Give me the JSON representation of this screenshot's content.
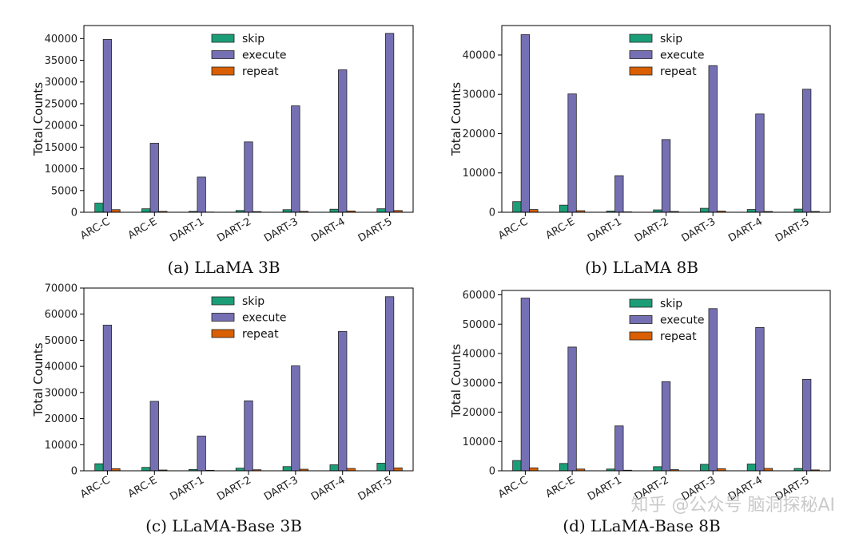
{
  "colors": {
    "skip": "#1b9e77",
    "execute": "#7570b3",
    "repeat": "#d95f02"
  },
  "legend": [
    "skip",
    "execute",
    "repeat"
  ],
  "watermark": "知乎 @公众号 脑洞探秘AI",
  "chart_data": [
    {
      "type": "bar",
      "caption": "(a) LLaMA 3B",
      "ylabel": "Total Counts",
      "ylim": [
        0,
        43000
      ],
      "yticks": [
        0,
        5000,
        10000,
        15000,
        20000,
        25000,
        30000,
        35000,
        40000
      ],
      "categories": [
        "ARC-C",
        "ARC-E",
        "DART-1",
        "DART-2",
        "DART-3",
        "DART-4",
        "DART-5"
      ],
      "series": [
        {
          "name": "skip",
          "values": [
            2100,
            800,
            200,
            400,
            600,
            700,
            800
          ]
        },
        {
          "name": "execute",
          "values": [
            39800,
            15900,
            8100,
            16200,
            24500,
            32800,
            41200
          ]
        },
        {
          "name": "repeat",
          "values": [
            600,
            200,
            50,
            150,
            200,
            300,
            400
          ]
        }
      ]
    },
    {
      "type": "bar",
      "caption": "(b) LLaMA 8B",
      "ylabel": "Total Counts",
      "ylim": [
        0,
        47500
      ],
      "yticks": [
        0,
        10000,
        20000,
        30000,
        40000
      ],
      "categories": [
        "ARC-C",
        "ARC-E",
        "DART-1",
        "DART-2",
        "DART-3",
        "DART-4",
        "DART-5"
      ],
      "series": [
        {
          "name": "skip",
          "values": [
            2700,
            1800,
            300,
            600,
            1000,
            700,
            800
          ]
        },
        {
          "name": "execute",
          "values": [
            45200,
            30100,
            9300,
            18500,
            37300,
            25000,
            31300
          ]
        },
        {
          "name": "repeat",
          "values": [
            700,
            400,
            100,
            200,
            300,
            200,
            200
          ]
        }
      ]
    },
    {
      "type": "bar",
      "caption": "(c) LLaMA-Base 3B",
      "ylabel": "Total Counts",
      "ylim": [
        0,
        70000
      ],
      "yticks": [
        0,
        10000,
        20000,
        30000,
        40000,
        50000,
        60000,
        70000
      ],
      "categories": [
        "ARC-C",
        "ARC-E",
        "DART-1",
        "DART-2",
        "DART-3",
        "DART-4",
        "DART-5"
      ],
      "series": [
        {
          "name": "skip",
          "values": [
            2700,
            1300,
            500,
            1000,
            1600,
            2300,
            2900
          ]
        },
        {
          "name": "execute",
          "values": [
            55800,
            26600,
            13300,
            26800,
            40200,
            53400,
            66700
          ]
        },
        {
          "name": "repeat",
          "values": [
            800,
            300,
            200,
            400,
            600,
            900,
            1100
          ]
        }
      ]
    },
    {
      "type": "bar",
      "caption": "(d) LLaMA-Base 8B",
      "ylabel": "Total Counts",
      "ylim": [
        0,
        61500
      ],
      "yticks": [
        0,
        10000,
        20000,
        30000,
        40000,
        50000,
        60000
      ],
      "categories": [
        "ARC-C",
        "ARC-E",
        "DART-1",
        "DART-2",
        "DART-3",
        "DART-4",
        "DART-5"
      ],
      "series": [
        {
          "name": "skip",
          "values": [
            3500,
            2500,
            600,
            1400,
            2200,
            2300,
            800
          ]
        },
        {
          "name": "execute",
          "values": [
            58900,
            42200,
            15300,
            30400,
            55300,
            48900,
            31200
          ]
        },
        {
          "name": "repeat",
          "values": [
            1000,
            600,
            200,
            400,
            700,
            800,
            300
          ]
        }
      ]
    }
  ]
}
